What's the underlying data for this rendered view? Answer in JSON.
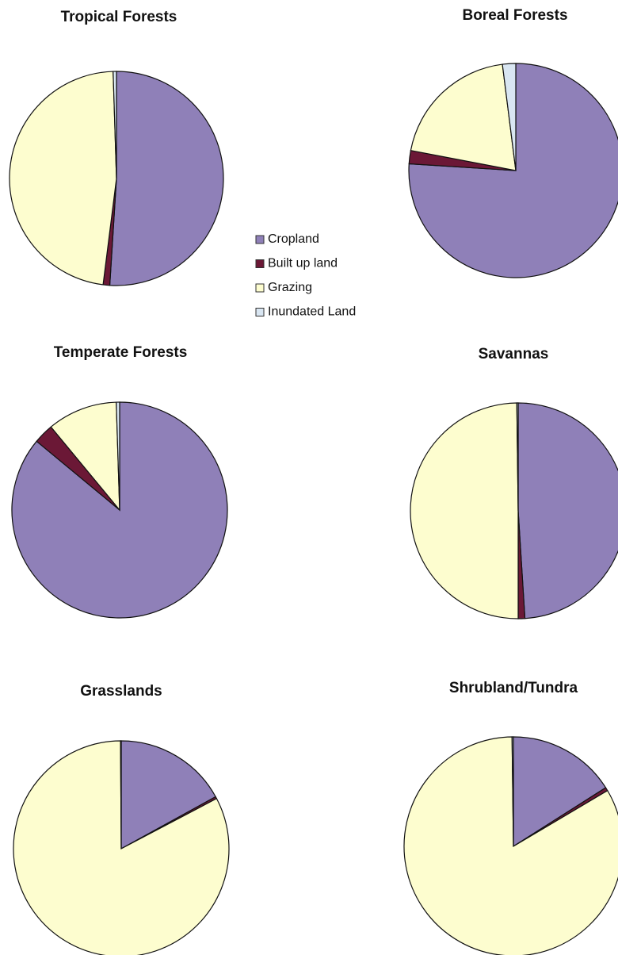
{
  "chart_data": [
    {
      "type": "pie",
      "title": "Tropical Forests",
      "categories": [
        "Cropland",
        "Built up land",
        "Grazing",
        "Inundated Land"
      ],
      "colors": [
        "#8f80b8",
        "#6b1836",
        "#fdfdcf",
        "#d9e6f2"
      ],
      "values": [
        51,
        1,
        47.5,
        0.5
      ]
    },
    {
      "type": "pie",
      "title": "Boreal Forests",
      "categories": [
        "Cropland",
        "Built up land",
        "Grazing",
        "Inundated Land"
      ],
      "colors": [
        "#8f80b8",
        "#6b1836",
        "#fdfdcf",
        "#d9e6f2"
      ],
      "values": [
        76,
        2,
        20,
        2
      ]
    },
    {
      "type": "pie",
      "title": "Temperate Forests",
      "categories": [
        "Cropland",
        "Built up land",
        "Grazing",
        "Inundated Land"
      ],
      "colors": [
        "#8f80b8",
        "#6b1836",
        "#fdfdcf",
        "#d9e6f2"
      ],
      "values": [
        86,
        3,
        10.5,
        0.5
      ]
    },
    {
      "type": "pie",
      "title": "Savannas",
      "categories": [
        "Cropland",
        "Built up land",
        "Grazing",
        "Inundated Land"
      ],
      "colors": [
        "#8f80b8",
        "#6b1836",
        "#fdfdcf",
        "#d9e6f2"
      ],
      "values": [
        49,
        1,
        49.8,
        0.2
      ]
    },
    {
      "type": "pie",
      "title": "Grasslands",
      "categories": [
        "Cropland",
        "Built up land",
        "Grazing",
        "Inundated Land"
      ],
      "colors": [
        "#8f80b8",
        "#6b1836",
        "#fdfdcf",
        "#d9e6f2"
      ],
      "values": [
        17,
        0.3,
        82.6,
        0.1
      ]
    },
    {
      "type": "pie",
      "title": "Shrubland/Tundra",
      "categories": [
        "Cropland",
        "Built up land",
        "Grazing",
        "Inundated Land"
      ],
      "colors": [
        "#8f80b8",
        "#6b1836",
        "#fdfdcf",
        "#d9e6f2"
      ],
      "values": [
        16,
        0.5,
        83.3,
        0.2
      ]
    }
  ]
}
